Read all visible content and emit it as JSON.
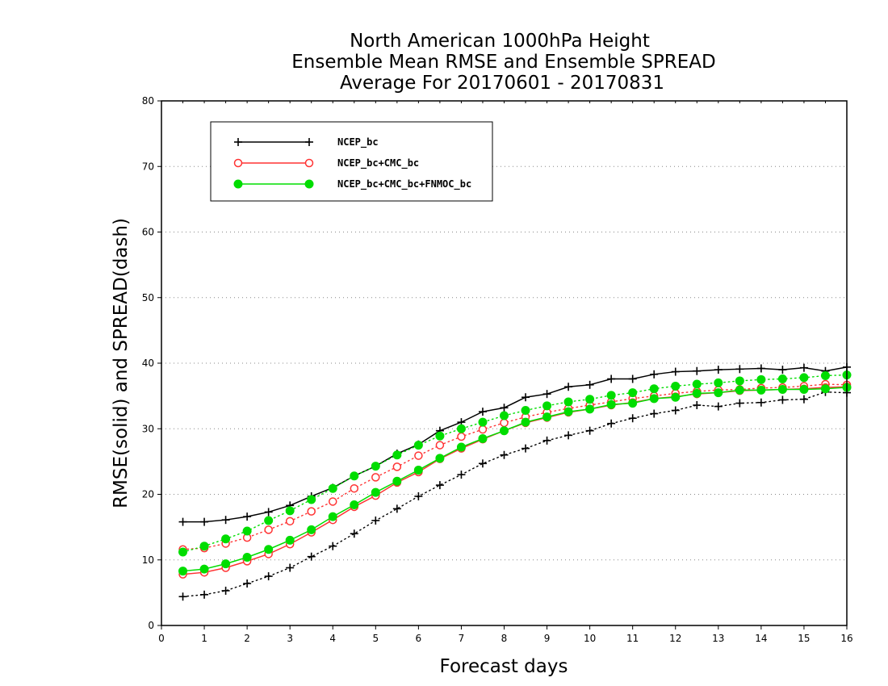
{
  "chart_data": {
    "type": "line",
    "title": [
      "North American 1000hPa Height",
      "Ensemble Mean RMSE and Ensemble SPREAD",
      "Average For 20170601 - 20170831"
    ],
    "xlabel": "Forecast days",
    "ylabel": "RMSE(solid) and SPREAD(dash)",
    "xlim": [
      0,
      16
    ],
    "ylim": [
      0,
      80
    ],
    "xticks": [
      "0",
      "1",
      "2",
      "3",
      "4",
      "5",
      "6",
      "7",
      "8",
      "9",
      "10",
      "11",
      "12",
      "13",
      "14",
      "15",
      "16"
    ],
    "yticks": [
      "0",
      "10",
      "20",
      "30",
      "40",
      "50",
      "60",
      "70",
      "80"
    ],
    "grid": "horizontal-dotted",
    "legend_position": "top-left",
    "x": [
      0.5,
      1,
      1.5,
      2,
      2.5,
      3,
      3.5,
      4,
      4.5,
      5,
      5.5,
      6,
      6.5,
      7,
      7.5,
      8,
      8.5,
      9,
      9.5,
      10,
      10.5,
      11,
      11.5,
      12,
      12.5,
      13,
      13.5,
      14,
      14.5,
      15,
      15.5,
      16
    ],
    "series": [
      {
        "name": "NCEP_bc",
        "color": "#000000",
        "marker": "plus",
        "rmse": [
          15.8,
          15.8,
          16.1,
          16.6,
          17.3,
          18.3,
          19.7,
          21.0,
          22.8,
          24.3,
          26.2,
          27.6,
          29.7,
          31.0,
          32.6,
          33.2,
          34.8,
          35.3,
          36.4,
          36.7,
          37.6,
          37.6,
          38.3,
          38.7,
          38.8,
          39.0,
          39.1,
          39.2,
          39.0,
          39.3,
          38.8,
          39.4
        ],
        "spread": [
          4.4,
          4.7,
          5.3,
          6.4,
          7.5,
          8.8,
          10.5,
          12.1,
          14.0,
          16.0,
          17.8,
          19.7,
          21.4,
          23.0,
          24.7,
          26.0,
          27.0,
          28.2,
          29.0,
          29.7,
          30.8,
          31.6,
          32.3,
          32.8,
          33.6,
          33.4,
          33.9,
          34.0,
          34.4,
          34.5,
          35.6,
          35.5
        ]
      },
      {
        "name": "NCEP_bc+CMC_bc",
        "color": "#ff3333",
        "marker": "open-circle",
        "rmse": [
          7.8,
          8.1,
          8.8,
          9.8,
          10.9,
          12.4,
          14.2,
          16.1,
          18.1,
          19.8,
          21.8,
          23.4,
          25.4,
          27.0,
          28.4,
          29.7,
          30.9,
          31.7,
          32.5,
          33.0,
          33.6,
          34.0,
          34.6,
          34.9,
          35.3,
          35.5,
          35.8,
          35.9,
          36.0,
          36.1,
          36.3,
          36.4
        ],
        "spread": [
          11.6,
          11.8,
          12.5,
          13.4,
          14.6,
          15.9,
          17.4,
          18.9,
          20.9,
          22.6,
          24.2,
          25.9,
          27.5,
          28.8,
          29.9,
          30.9,
          31.8,
          32.5,
          33.1,
          33.6,
          34.1,
          34.6,
          35.0,
          35.4,
          35.7,
          35.9,
          36.0,
          36.2,
          36.3,
          36.5,
          36.8,
          36.7
        ]
      },
      {
        "name": "NCEP_bc+CMC_bc+FNMOC_bc",
        "color": "#00dd00",
        "marker": "filled-circle",
        "rmse": [
          8.3,
          8.6,
          9.4,
          10.4,
          11.6,
          13.0,
          14.6,
          16.6,
          18.4,
          20.3,
          22.0,
          23.7,
          25.5,
          27.2,
          28.5,
          29.7,
          31.0,
          31.8,
          32.6,
          33.0,
          33.7,
          33.9,
          34.6,
          34.8,
          35.4,
          35.5,
          35.9,
          35.9,
          36.0,
          36.0,
          36.1,
          36.3
        ],
        "spread": [
          11.2,
          12.1,
          13.2,
          14.4,
          16.0,
          17.5,
          19.2,
          20.9,
          22.8,
          24.3,
          26.0,
          27.5,
          28.9,
          30.0,
          31.0,
          32.0,
          32.8,
          33.5,
          34.1,
          34.5,
          35.1,
          35.5,
          36.1,
          36.5,
          36.8,
          37.0,
          37.3,
          37.5,
          37.6,
          37.8,
          38.1,
          38.2
        ]
      }
    ]
  }
}
